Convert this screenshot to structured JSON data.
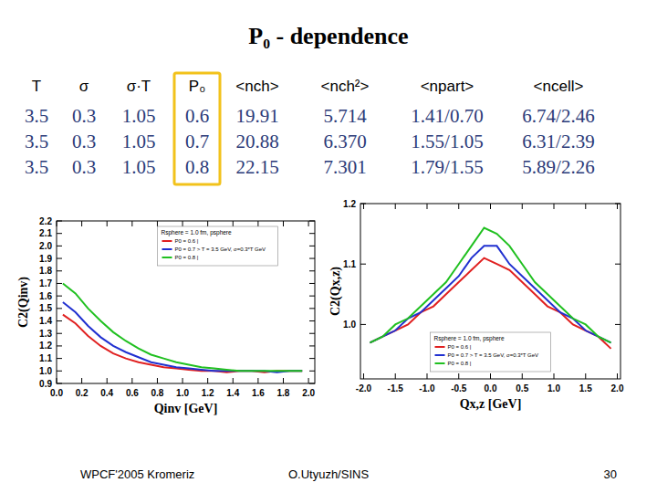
{
  "title": "P₀ - dependence",
  "table": {
    "header": [
      "T",
      "σ",
      "σ·T",
      "P₀",
      "<nch>",
      "<nch²>",
      "<npart>",
      "<ncell>"
    ],
    "rows": [
      [
        "3.5",
        "0.3",
        "1.05",
        "0.6",
        "19.91",
        "5.714",
        "1.41/0.70",
        "6.74/2.46"
      ],
      [
        "3.5",
        "0.3",
        "1.05",
        "0.7",
        "20.88",
        "6.370",
        "1.55/1.05",
        "6.31/2.39"
      ],
      [
        "3.5",
        "0.3",
        "1.05",
        "0.8",
        "22.15",
        "7.301",
        "1.79/1.55",
        "5.89/2.26"
      ]
    ]
  },
  "chart_data": [
    {
      "type": "line",
      "x_label": "Qinv  [GeV]",
      "y_label": "C2(Qinv)",
      "annotations": [
        "Rsphere = 1.0 fm, psphere"
      ],
      "legend": "upper center",
      "grid": false,
      "xlim": [
        0,
        2.05
      ],
      "ylim": [
        0.9,
        2.2
      ],
      "xticks": [
        {
          "value": 0,
          "label": "0.0"
        },
        0.2,
        0.4,
        0.6,
        0.8,
        {
          "value": 1,
          "label": "1.0"
        },
        1.2,
        1.4,
        1.6,
        1.8,
        {
          "value": 2,
          "label": "2.0"
        }
      ],
      "yticks": [
        0.9,
        {
          "value": 1,
          "label": "1.0"
        },
        1.1,
        1.2,
        1.3,
        1.4,
        1.5,
        1.6,
        1.7,
        1.8,
        1.9,
        {
          "value": 2,
          "label": "2.0"
        },
        2.1,
        2.2
      ],
      "x": [
        0.05,
        0.15,
        0.25,
        0.35,
        0.45,
        0.55,
        0.65,
        0.75,
        0.85,
        0.95,
        1.05,
        1.15,
        1.25,
        1.35,
        1.45,
        1.55,
        1.65,
        1.75,
        1.85,
        1.95
      ],
      "series": [
        {
          "name": "P0 = 0.6 |",
          "color": "#e02020",
          "values": [
            1.45,
            1.38,
            1.28,
            1.2,
            1.14,
            1.1,
            1.07,
            1.05,
            1.03,
            1.02,
            1.01,
            1.0,
            1.0,
            0.99,
            1.0,
            1.0,
            0.99,
            1.0,
            1.0,
            1.0
          ]
        },
        {
          "name": "P0 = 0.7 > T = 3.5 GeV, σ=0.3*T GeV",
          "color": "#2030d0",
          "values": [
            1.55,
            1.47,
            1.36,
            1.27,
            1.2,
            1.15,
            1.11,
            1.07,
            1.05,
            1.03,
            1.02,
            1.01,
            1.0,
            1.0,
            1.0,
            1.0,
            1.0,
            0.99,
            1.0,
            1.0
          ]
        },
        {
          "name": "P0 = 0.8 |",
          "color": "#20c020",
          "values": [
            1.7,
            1.62,
            1.5,
            1.4,
            1.31,
            1.24,
            1.18,
            1.13,
            1.1,
            1.07,
            1.05,
            1.03,
            1.02,
            1.01,
            1.0,
            1.0,
            1.0,
            1.0,
            1.0,
            1.0
          ]
        }
      ]
    },
    {
      "type": "line",
      "x_label": "Qx,z  [GeV]",
      "y_label": "C2(Qx,z)",
      "annotations": [
        "Rsphere = 1.0 fm, psphere"
      ],
      "legend": "lower center",
      "grid": false,
      "xlim": [
        -2.05,
        2.05
      ],
      "ylim": [
        0.91,
        1.2
      ],
      "xticks": [
        {
          "value": -2,
          "label": "-2.0"
        },
        -1.5,
        {
          "value": -1,
          "label": "-1.0"
        },
        -0.5,
        {
          "value": 0,
          "label": "0.0"
        },
        0.5,
        {
          "value": 1,
          "label": "1.0"
        },
        1.5,
        {
          "value": 2,
          "label": "2.0"
        }
      ],
      "yticks": [
        {
          "value": 1,
          "label": "1.0"
        },
        1.1,
        1.2
      ],
      "x": [
        -1.9,
        -1.7,
        -1.5,
        -1.3,
        -1.1,
        -0.9,
        -0.7,
        -0.5,
        -0.3,
        -0.1,
        0.1,
        0.3,
        0.5,
        0.7,
        0.9,
        1.1,
        1.3,
        1.5,
        1.7,
        1.9
      ],
      "series": [
        {
          "name": "P0 = 0.6 |",
          "color": "#e02020",
          "values": [
            0.97,
            0.98,
            0.99,
            1.0,
            1.02,
            1.03,
            1.05,
            1.07,
            1.09,
            1.11,
            1.1,
            1.09,
            1.07,
            1.05,
            1.03,
            1.02,
            1.0,
            0.99,
            0.98,
            0.96
          ]
        },
        {
          "name": "P0 = 0.7 > T = 3.5 GeV, σ=0.3*T GeV",
          "color": "#2030d0",
          "values": [
            0.97,
            0.98,
            0.99,
            1.01,
            1.02,
            1.04,
            1.06,
            1.08,
            1.11,
            1.13,
            1.13,
            1.1,
            1.08,
            1.06,
            1.04,
            1.02,
            1.01,
            0.99,
            0.98,
            0.97
          ]
        },
        {
          "name": "P0 = 0.8 |",
          "color": "#20c020",
          "values": [
            0.97,
            0.98,
            1.0,
            1.01,
            1.03,
            1.05,
            1.07,
            1.1,
            1.13,
            1.16,
            1.15,
            1.13,
            1.1,
            1.07,
            1.05,
            1.03,
            1.01,
            1.0,
            0.98,
            0.97
          ]
        }
      ]
    }
  ],
  "footer": {
    "left": "WPCF'2005 Kromeriz",
    "center": "O.Utyuzh/SINS",
    "right": "30"
  }
}
